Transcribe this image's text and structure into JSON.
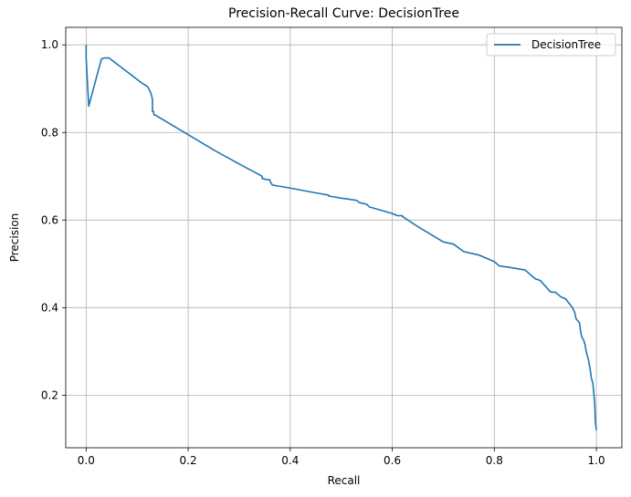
{
  "chart_data": {
    "type": "line",
    "title": "Precision-Recall Curve: DecisionTree",
    "xlabel": "Recall",
    "ylabel": "Precision",
    "xlim": [
      -0.04,
      1.05
    ],
    "ylim": [
      0.08,
      1.04
    ],
    "x_ticks": [
      0.0,
      0.2,
      0.4,
      0.6,
      0.8,
      1.0
    ],
    "x_tick_labels": [
      "0.0",
      "0.2",
      "0.4",
      "0.6",
      "0.8",
      "1.0"
    ],
    "y_ticks": [
      0.2,
      0.4,
      0.6,
      0.8,
      1.0
    ],
    "y_tick_labels": [
      "0.2",
      "0.4",
      "0.6",
      "0.8",
      "1.0"
    ],
    "grid": true,
    "legend_position": "top-right",
    "series": [
      {
        "name": "DecisionTree",
        "color": "#1f77b4",
        "x": [
          0.0,
          0.0,
          0.005,
          0.03,
          0.035,
          0.045,
          0.065,
          0.09,
          0.11,
          0.12,
          0.125,
          0.128,
          0.13,
          0.13,
          0.132,
          0.133,
          0.135,
          0.2,
          0.25,
          0.3,
          0.345,
          0.345,
          0.355,
          0.36,
          0.362,
          0.365,
          0.4,
          0.45,
          0.475,
          0.475,
          0.5,
          0.53,
          0.535,
          0.55,
          0.555,
          0.6,
          0.61,
          0.62,
          0.62,
          0.65,
          0.7,
          0.72,
          0.74,
          0.77,
          0.79,
          0.8,
          0.81,
          0.83,
          0.86,
          0.88,
          0.89,
          0.91,
          0.92,
          0.93,
          0.94,
          0.945,
          0.95,
          0.953,
          0.956,
          0.958,
          0.96,
          0.965,
          0.967,
          0.97,
          0.972,
          0.975,
          0.978,
          0.98,
          0.985,
          0.988,
          0.99,
          0.993,
          0.995,
          0.997,
          0.998,
          1.0
        ],
        "y": [
          1.0,
          0.97,
          0.86,
          0.968,
          0.97,
          0.97,
          0.952,
          0.93,
          0.912,
          0.905,
          0.895,
          0.885,
          0.875,
          0.848,
          0.848,
          0.84,
          0.84,
          0.795,
          0.76,
          0.728,
          0.7,
          0.695,
          0.692,
          0.692,
          0.685,
          0.68,
          0.673,
          0.662,
          0.657,
          0.655,
          0.65,
          0.645,
          0.64,
          0.636,
          0.63,
          0.615,
          0.61,
          0.61,
          0.608,
          0.585,
          0.55,
          0.545,
          0.528,
          0.52,
          0.51,
          0.505,
          0.495,
          0.492,
          0.486,
          0.466,
          0.462,
          0.436,
          0.435,
          0.425,
          0.42,
          0.412,
          0.405,
          0.4,
          0.393,
          0.387,
          0.375,
          0.368,
          0.365,
          0.34,
          0.332,
          0.326,
          0.315,
          0.3,
          0.278,
          0.258,
          0.24,
          0.228,
          0.205,
          0.175,
          0.14,
          0.12
        ]
      }
    ]
  }
}
